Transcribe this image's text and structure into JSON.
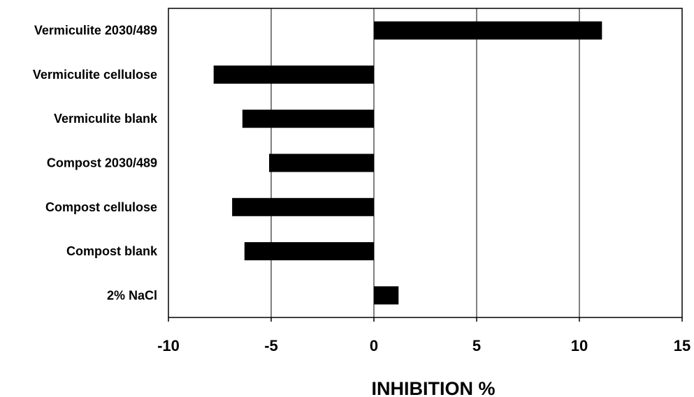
{
  "chart_data": {
    "type": "bar",
    "orientation": "horizontal",
    "categories": [
      "Vermiculite 2030/489",
      "Vermiculite cellulose",
      "Vermiculite blank",
      "Compost 2030/489",
      "Compost cellulose",
      "Compost blank",
      "2% NaCl"
    ],
    "values": [
      11.1,
      -7.8,
      -6.4,
      -5.1,
      -6.9,
      -6.3,
      1.2
    ],
    "xlabel": "INHIBITION %",
    "ylabel": "",
    "title": "",
    "xlim": [
      -10,
      15
    ],
    "xticks": [
      -10,
      -5,
      0,
      5,
      10,
      15
    ],
    "tick_labels": [
      "-10",
      "-5",
      "0",
      "5",
      "10",
      "15"
    ],
    "grid": "vertical",
    "legend": "none",
    "bar_color": "#000000",
    "grid_color": "#000000"
  }
}
